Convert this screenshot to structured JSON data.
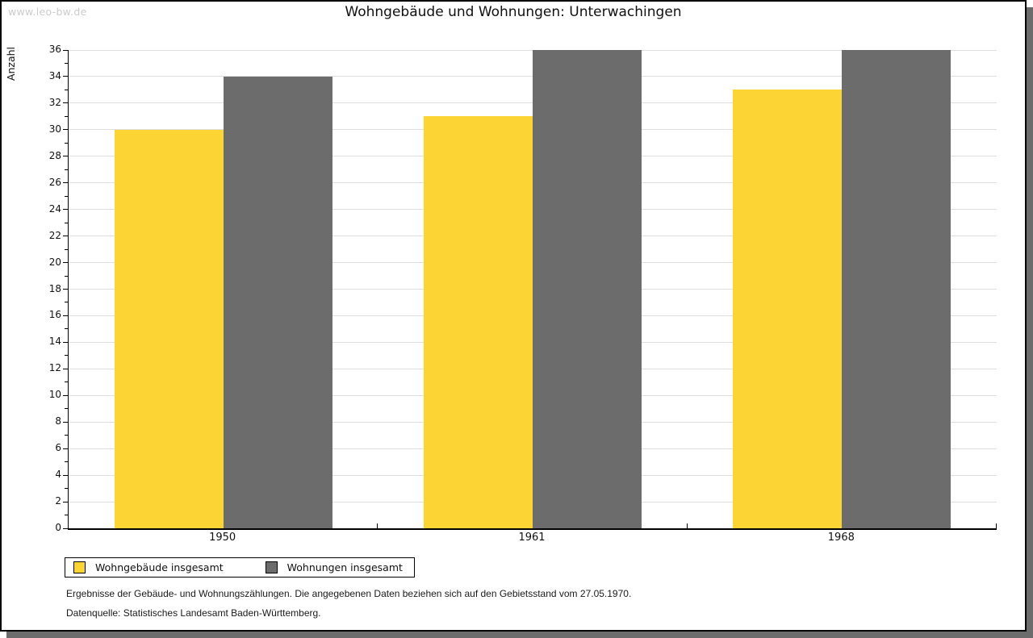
{
  "watermark": "www.leo-bw.de",
  "title": "Wohngebäude und Wohnungen: Unterwachingen",
  "chart_data": {
    "type": "bar",
    "title": "Wohngebäude und Wohnungen: Unterwachingen",
    "categories": [
      "1950",
      "1961",
      "1968"
    ],
    "series": [
      {
        "name": "Wohngebäude insgesamt",
        "color": "#fcd433",
        "values": [
          30,
          31,
          33
        ]
      },
      {
        "name": "Wohnungen insgesamt",
        "color": "#6c6c6c",
        "values": [
          34,
          36,
          36
        ]
      }
    ],
    "xlabel": "",
    "ylabel": "Anzahl",
    "ylim": [
      0,
      36
    ],
    "ytick_step": 2,
    "yminortick_step": 1,
    "grid": true,
    "gridline_color": "#dedede",
    "legend_position": "bottom-left"
  },
  "footer": {
    "line1": "Ergebnisse der Gebäude- und Wohnungszählungen. Die angegebenen Daten beziehen sich auf den Gebietsstand vom 27.05.1970.",
    "line2": "Datenquelle: Statistisches Landesamt Baden-Württemberg."
  }
}
